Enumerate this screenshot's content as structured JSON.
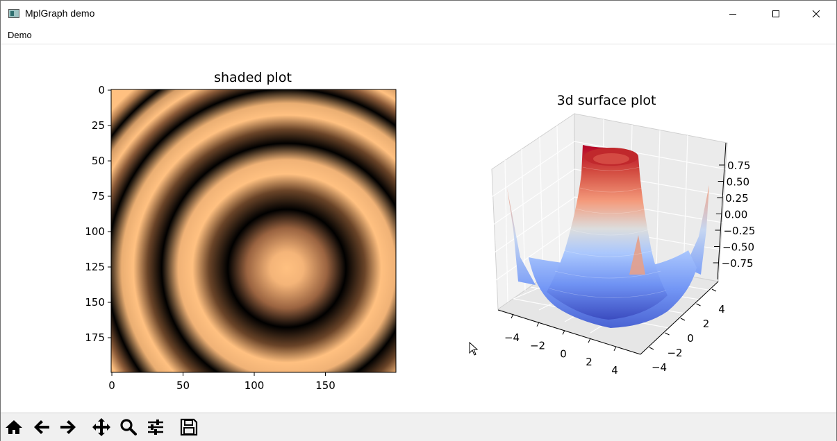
{
  "window": {
    "title": "MplGraph demo"
  },
  "menu": {
    "items": [
      "Demo"
    ]
  },
  "plots": {
    "shaded": {
      "title": "shaded plot",
      "xticks": [
        "0",
        "50",
        "100",
        "150"
      ],
      "yticks": [
        "0",
        "25",
        "50",
        "75",
        "100",
        "125",
        "150",
        "175"
      ]
    },
    "surface": {
      "title": "3d surface plot",
      "zticks": [
        "0.75",
        "0.50",
        "0.25",
        "0.00",
        "−0.25",
        "−0.50",
        "−0.75"
      ],
      "xticks": [
        "−4",
        "−2",
        "0",
        "2",
        "4"
      ],
      "yticks": [
        "4",
        "2",
        "0",
        "−2",
        "−4"
      ]
    }
  },
  "toolbar": {
    "buttons": [
      "home-icon",
      "back-arrow-icon",
      "forward-arrow-icon",
      "pan-icon",
      "zoom-icon",
      "configure-subplots-icon",
      "save-icon"
    ]
  },
  "colors": {
    "copper_light": "#ffc080",
    "coolwarm_red": "#b40426",
    "coolwarm_blue": "#3b4cc0"
  }
}
